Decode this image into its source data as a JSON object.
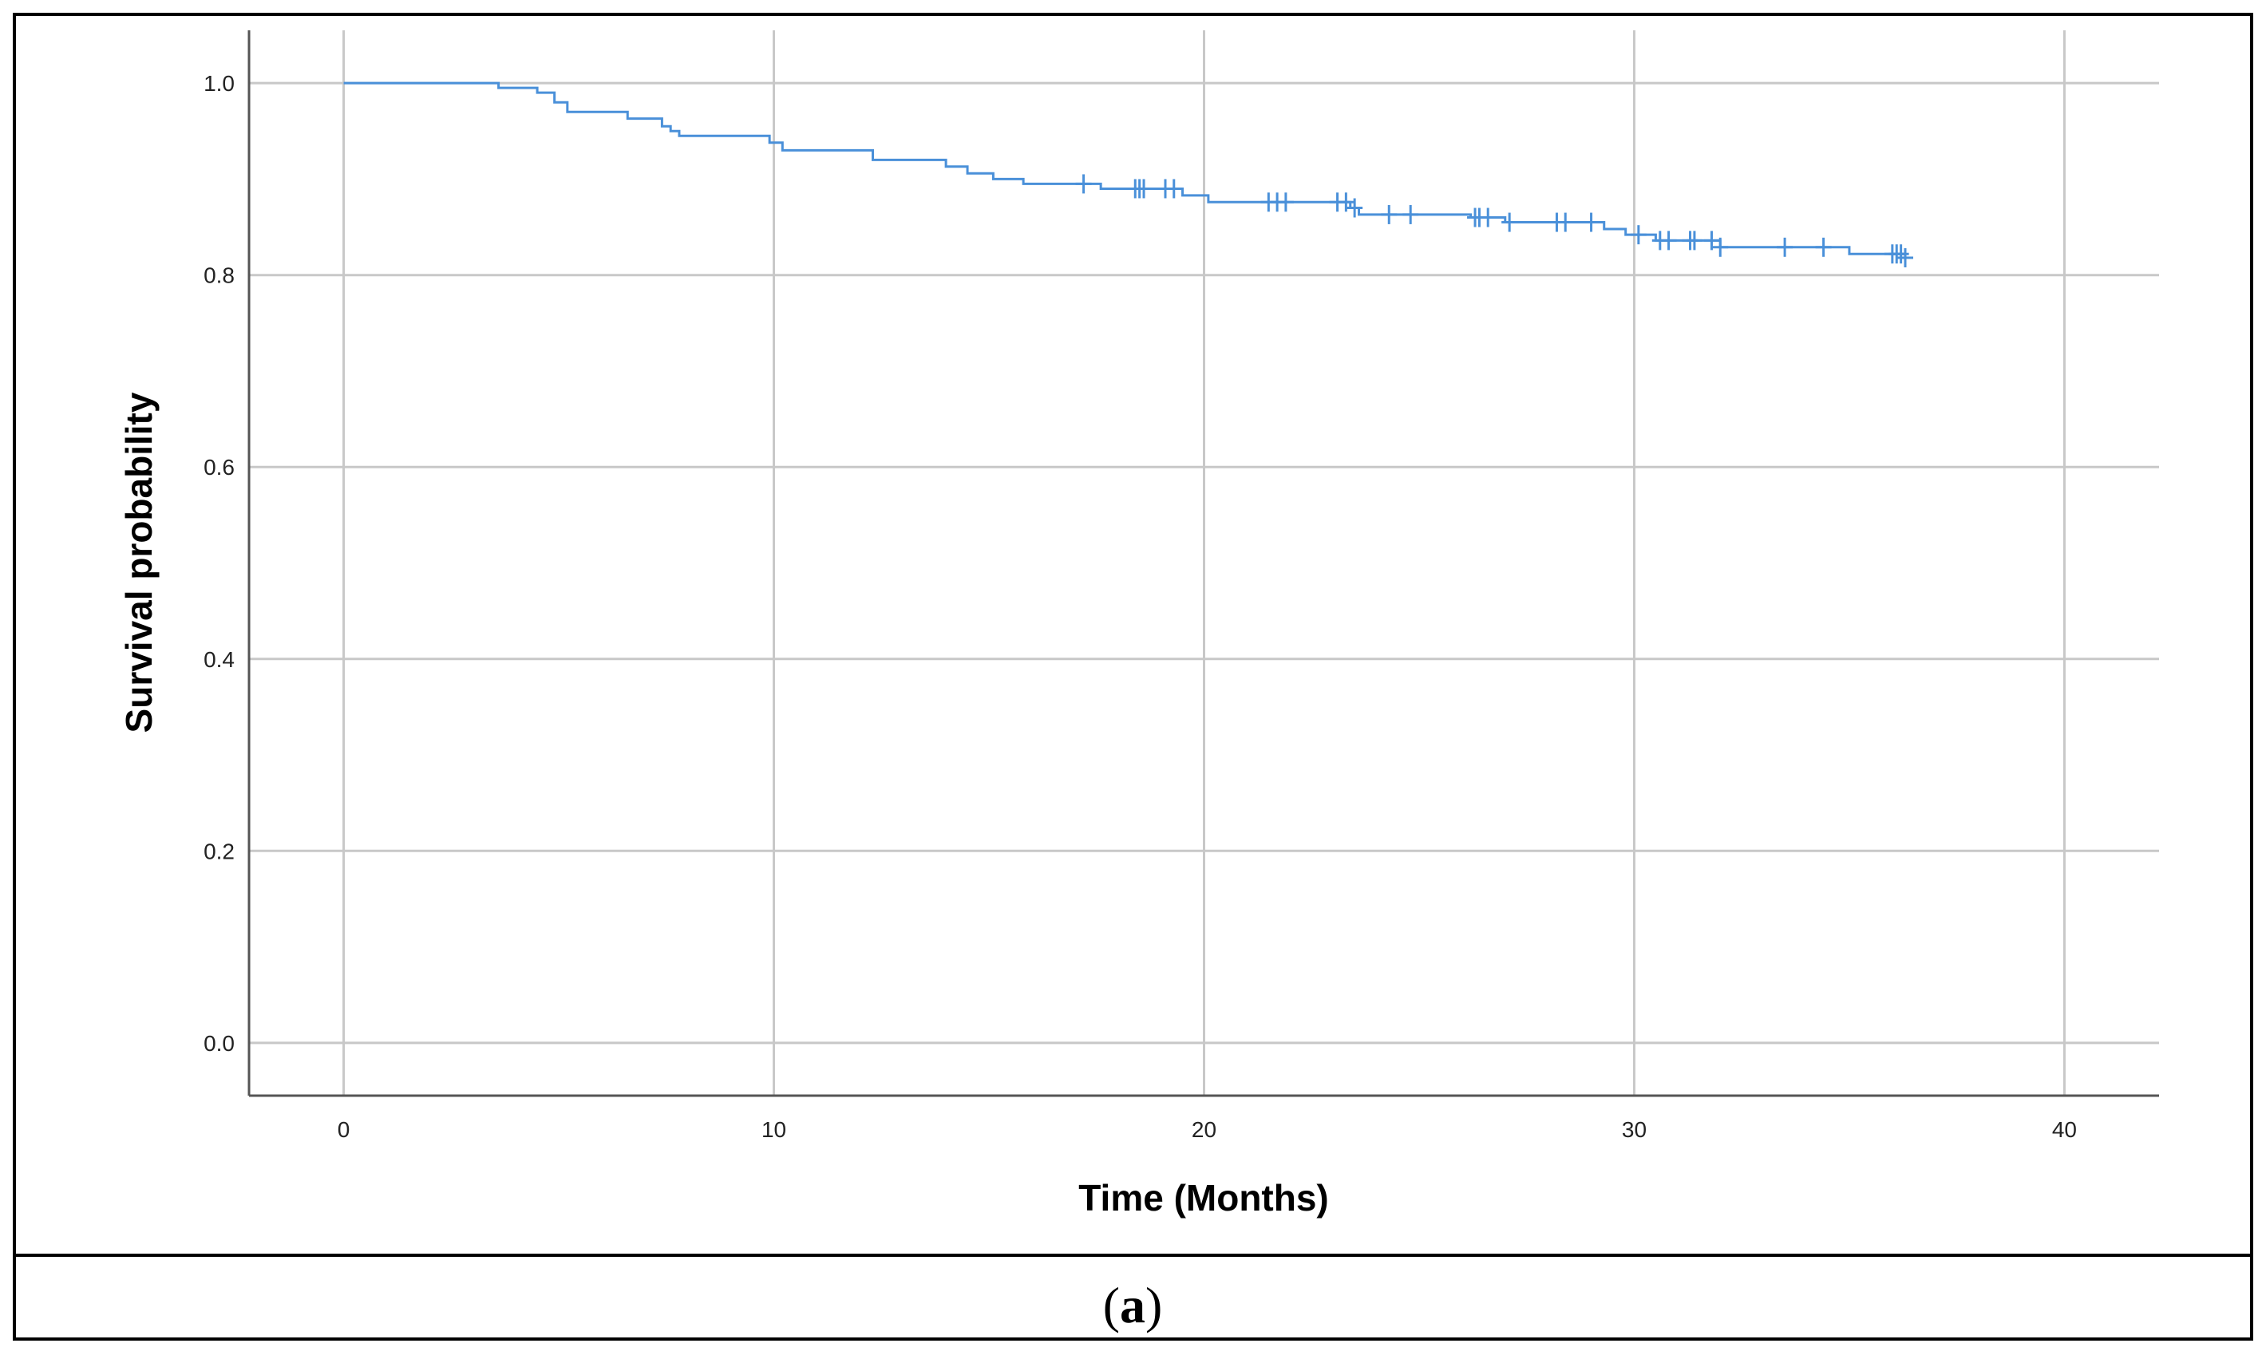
{
  "chart_data": {
    "type": "line",
    "subtype": "kaplan-meier",
    "title": "",
    "xlabel": "Time (Months)",
    "ylabel": "Survival probability",
    "xlim": [
      -2.2,
      42.2
    ],
    "ylim": [
      -0.055,
      1.055
    ],
    "xticks": [
      0,
      10,
      20,
      30,
      40
    ],
    "yticks": [
      0.0,
      0.2,
      0.4,
      0.6,
      0.8,
      1.0
    ],
    "xtick_labels": [
      "0",
      "10",
      "20",
      "30",
      "40"
    ],
    "ytick_labels": [
      "0.0",
      "0.2",
      "0.4",
      "0.6",
      "0.8",
      "1.0"
    ],
    "grid": true,
    "legend": "none",
    "series": [
      {
        "color": "#4a90d9",
        "steps": [
          [
            0,
            1.0
          ],
          [
            3.6,
            0.995
          ],
          [
            4.5,
            0.99
          ],
          [
            4.9,
            0.98
          ],
          [
            5.2,
            0.97
          ],
          [
            6.6,
            0.963
          ],
          [
            7.4,
            0.955
          ],
          [
            7.6,
            0.95
          ],
          [
            7.8,
            0.945
          ],
          [
            9.9,
            0.938
          ],
          [
            10.2,
            0.93
          ],
          [
            12.3,
            0.92
          ],
          [
            14.0,
            0.913
          ],
          [
            14.5,
            0.906
          ],
          [
            15.1,
            0.9
          ],
          [
            15.8,
            0.895
          ],
          [
            17.6,
            0.89
          ],
          [
            19.5,
            0.883
          ],
          [
            20.1,
            0.876
          ],
          [
            23.4,
            0.87
          ],
          [
            23.6,
            0.863
          ],
          [
            26.2,
            0.86
          ],
          [
            27.0,
            0.855
          ],
          [
            29.3,
            0.848
          ],
          [
            29.8,
            0.842
          ],
          [
            30.5,
            0.836
          ],
          [
            32.0,
            0.829
          ],
          [
            35.0,
            0.822
          ],
          [
            36.3,
            0.818
          ]
        ],
        "censored": [
          17.2,
          18.4,
          18.5,
          18.6,
          19.1,
          19.3,
          21.5,
          21.7,
          21.9,
          23.1,
          23.3,
          23.5,
          24.3,
          24.8,
          26.3,
          26.4,
          26.6,
          27.1,
          28.2,
          28.4,
          29.0,
          30.1,
          30.6,
          30.8,
          31.3,
          31.4,
          31.8,
          32.0,
          33.5,
          34.4,
          36.0,
          36.1,
          36.2,
          36.3
        ]
      }
    ]
  },
  "caption": {
    "open": "(",
    "label": "a",
    "close": ")"
  }
}
